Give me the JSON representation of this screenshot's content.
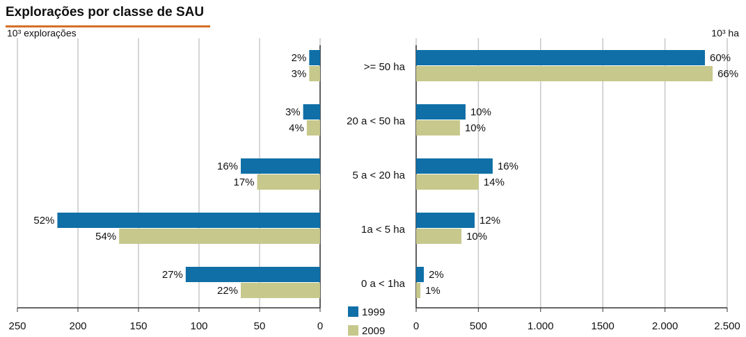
{
  "title": "Explorações por classe de SAU",
  "chart_data": [
    {
      "type": "bar",
      "orientation": "horizontal",
      "x_direction": "reversed",
      "axis_label": "10³ explorações",
      "categories": [
        ">= 50 ha",
        "20 a < 50 ha",
        "5 a < 20 ha",
        "1a < 5 ha",
        "0 a < 1ha"
      ],
      "series": [
        {
          "name": "1999",
          "color": "#0f6fa6",
          "values": [
            9,
            14,
            65.5,
            217,
            111
          ],
          "labels": [
            "2%",
            "3%",
            "16%",
            "52%",
            "27%"
          ]
        },
        {
          "name": "2009",
          "color": "#c6c88c",
          "values": [
            9,
            11,
            52,
            166,
            65.5
          ],
          "labels": [
            "3%",
            "4%",
            "17%",
            "54%",
            "22%"
          ]
        }
      ],
      "xlim": [
        0,
        250
      ],
      "xticks": [
        0,
        50,
        100,
        150,
        200,
        250
      ],
      "grid": true
    },
    {
      "type": "bar",
      "orientation": "horizontal",
      "x_direction": "normal",
      "axis_label": "10³ ha",
      "series": [
        {
          "color": "#0f6fa6",
          "values": [
            2321,
            397,
            615,
            470,
            62
          ],
          "labels": [
            "60%",
            "10%",
            "16%",
            "12%",
            "2%"
          ]
        },
        {
          "color": "#c6c88c",
          "values": [
            2383,
            352,
            503,
            364,
            34
          ],
          "labels": [
            "66%",
            "10%",
            "14%",
            "10%",
            "1%"
          ]
        }
      ],
      "xlim": [
        0,
        2500
      ],
      "xticks": [
        0,
        500,
        {
          "value": 1000,
          "label": "1.000"
        },
        1500,
        {
          "value": 2000,
          "label": "2.000"
        },
        {
          "value": 2500,
          "label": "2.500"
        }
      ],
      "grid": true
    }
  ]
}
